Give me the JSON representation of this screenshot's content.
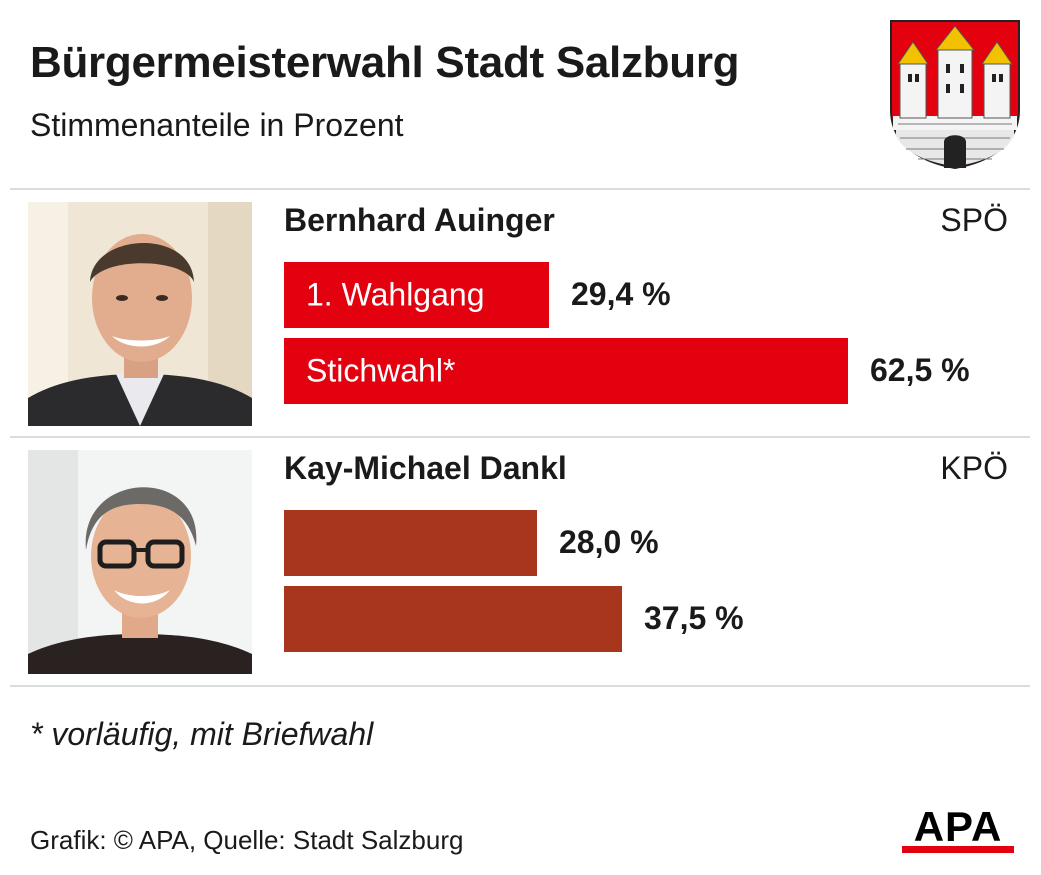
{
  "title": "Bürgermeisterwahl Stadt Salzburg",
  "subtitle": "Stimmenanteile in Prozent",
  "footnote": "* vorläufig, mit Briefwahl",
  "source": "Grafik: © APA, Quelle: Stadt Salzburg",
  "brand_logo": "APA",
  "colors": {
    "spoe": "#e3000f",
    "kpoe": "#a8361d",
    "text": "#1a1a1a",
    "divider": "#dcdcdc"
  },
  "candidates": [
    {
      "name": "Bernhard Auinger",
      "party": "SPÖ",
      "photo": "portrait-photo"
    },
    {
      "name": "Kay-Michael Dankl",
      "party": "KPÖ",
      "photo": "portrait-photo"
    }
  ],
  "chart_data": {
    "type": "bar",
    "orientation": "horizontal",
    "title": "Bürgermeisterwahl Stadt Salzburg",
    "subtitle": "Stimmenanteile in Prozent",
    "categories": [
      "Bernhard Auinger",
      "Kay-Michael Dankl"
    ],
    "series": [
      {
        "name": "1. Wahlgang",
        "values": [
          29.4,
          28.0
        ],
        "labels": [
          "29,4 %",
          "28,0 %"
        ]
      },
      {
        "name": "Stichwahl*",
        "values": [
          62.5,
          37.5
        ],
        "labels": [
          "62,5 %",
          "37,5 %"
        ]
      }
    ],
    "colors": [
      "#e3000f",
      "#a8361d"
    ]
  }
}
